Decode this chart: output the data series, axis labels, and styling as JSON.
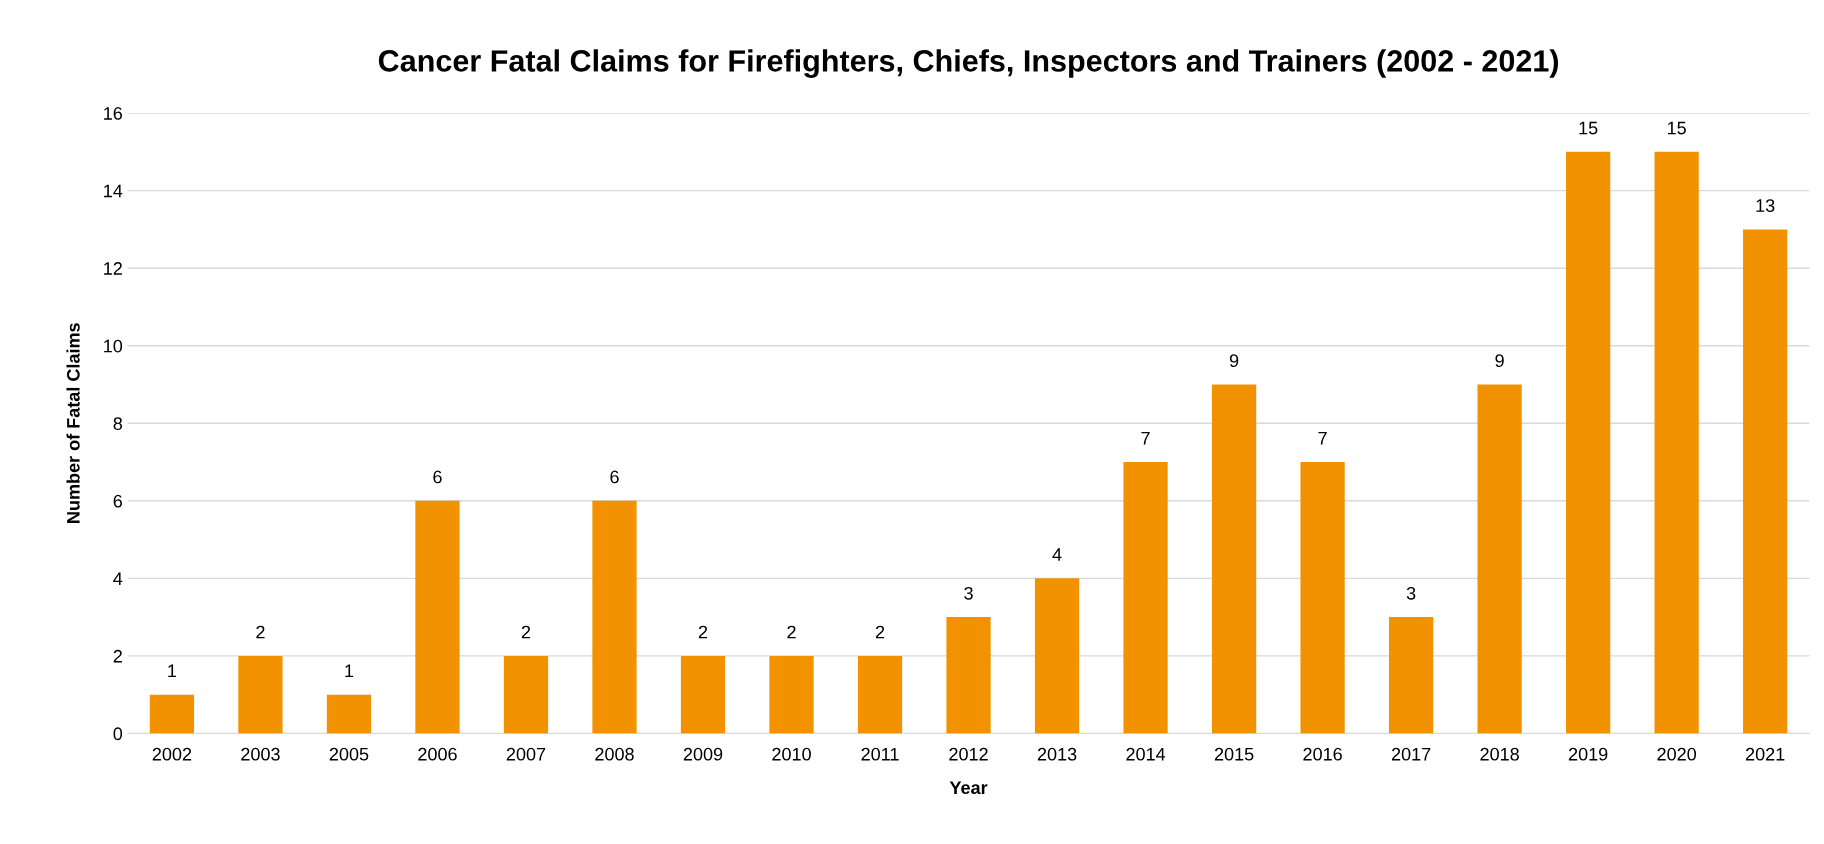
{
  "chart_data": {
    "type": "bar",
    "title": "Cancer Fatal Claims for Firefighters, Chiefs, Inspectors and Trainers (2002 - 2021)",
    "xlabel": "Year",
    "ylabel": "Number of Fatal Claims",
    "categories": [
      "2002",
      "2003",
      "2005",
      "2006",
      "2007",
      "2008",
      "2009",
      "2010",
      "2011",
      "2012",
      "2013",
      "2014",
      "2015",
      "2016",
      "2017",
      "2018",
      "2019",
      "2020",
      "2021"
    ],
    "values": [
      1,
      2,
      1,
      6,
      2,
      6,
      2,
      2,
      2,
      3,
      4,
      7,
      9,
      7,
      3,
      9,
      15,
      15,
      13
    ],
    "color": "#f39200",
    "ylim": [
      0,
      16
    ],
    "yticks": [
      0,
      2,
      4,
      6,
      8,
      10,
      12,
      14,
      16
    ],
    "grid": "y",
    "data_labels": true,
    "legend": false
  }
}
